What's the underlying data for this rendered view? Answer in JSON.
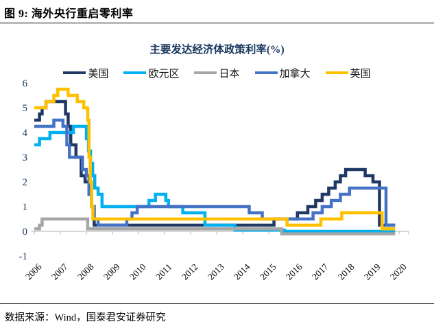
{
  "header": {
    "title": "图 9:  海外央行重启零利率"
  },
  "footer": {
    "source": "数据来源：Wind，国泰君安证券研究"
  },
  "chart_data": {
    "type": "line",
    "title": "主要发达经济体政策利率(%)",
    "title_color": "#17375e",
    "legend_position": "top",
    "grid": false,
    "xlim": [
      2006,
      2020.4
    ],
    "ylim": [
      -1,
      6
    ],
    "x_tick_labels": [
      "2006",
      "2007",
      "2008",
      "2009",
      "2010",
      "2011",
      "2012",
      "2013",
      "2014",
      "2015",
      "2016",
      "2017",
      "2018",
      "2019",
      "2020"
    ],
    "y_ticks": [
      6,
      5,
      4,
      3,
      2,
      1,
      0,
      -1
    ],
    "axis_color": "#bfbfbf",
    "x_tick_label_color": "#000000",
    "y_tick_label_color": "#17375e",
    "series": [
      {
        "name": "美国",
        "color": "#1f3864",
        "points": [
          [
            2006.0,
            4.5
          ],
          [
            2006.2,
            4.75
          ],
          [
            2006.3,
            5.0
          ],
          [
            2006.45,
            5.25
          ],
          [
            2007.2,
            4.75
          ],
          [
            2007.3,
            4.25
          ],
          [
            2007.4,
            3.5
          ],
          [
            2007.6,
            3.0
          ],
          [
            2007.8,
            2.25
          ],
          [
            2007.95,
            2.0
          ],
          [
            2008.1,
            1.5
          ],
          [
            2008.2,
            1.0
          ],
          [
            2008.3,
            0.25
          ],
          [
            2015.2,
            0.5
          ],
          [
            2016.1,
            0.75
          ],
          [
            2016.5,
            1.0
          ],
          [
            2016.8,
            1.25
          ],
          [
            2017.05,
            1.5
          ],
          [
            2017.3,
            1.75
          ],
          [
            2017.55,
            2.0
          ],
          [
            2017.75,
            2.25
          ],
          [
            2017.95,
            2.5
          ],
          [
            2018.7,
            2.25
          ],
          [
            2019.0,
            2.0
          ],
          [
            2019.25,
            0.25
          ],
          [
            2019.85,
            0.25
          ]
        ]
      },
      {
        "name": "欧元区",
        "color": "#00b0f0",
        "points": [
          [
            2006.0,
            3.5
          ],
          [
            2006.2,
            3.75
          ],
          [
            2006.6,
            4.0
          ],
          [
            2007.5,
            4.25
          ],
          [
            2008.0,
            3.75
          ],
          [
            2008.08,
            3.25
          ],
          [
            2008.16,
            2.75
          ],
          [
            2008.24,
            2.25
          ],
          [
            2008.32,
            1.75
          ],
          [
            2008.45,
            1.5
          ],
          [
            2008.6,
            1.0
          ],
          [
            2010.4,
            1.25
          ],
          [
            2010.65,
            1.5
          ],
          [
            2011.05,
            1.25
          ],
          [
            2011.15,
            1.0
          ],
          [
            2011.7,
            0.75
          ],
          [
            2012.55,
            0.25
          ],
          [
            2013.7,
            0.05
          ],
          [
            2015.6,
            0.0
          ],
          [
            2019.85,
            0.0
          ]
        ]
      },
      {
        "name": "日本",
        "color": "#a6a6a6",
        "points": [
          [
            2006.0,
            0.1
          ],
          [
            2006.2,
            0.25
          ],
          [
            2006.3,
            0.5
          ],
          [
            2008.05,
            0.1
          ],
          [
            2015.5,
            -0.1
          ],
          [
            2019.85,
            -0.1
          ]
        ]
      },
      {
        "name": "加拿大",
        "color": "#4472c4",
        "points": [
          [
            2006.0,
            4.25
          ],
          [
            2006.75,
            4.5
          ],
          [
            2007.1,
            4.25
          ],
          [
            2007.25,
            3.5
          ],
          [
            2007.35,
            3.0
          ],
          [
            2007.85,
            2.5
          ],
          [
            2008.0,
            2.25
          ],
          [
            2008.1,
            1.5
          ],
          [
            2008.2,
            1.0
          ],
          [
            2008.3,
            0.5
          ],
          [
            2008.45,
            0.25
          ],
          [
            2009.55,
            0.5
          ],
          [
            2009.75,
            0.75
          ],
          [
            2009.95,
            1.0
          ],
          [
            2014.25,
            0.75
          ],
          [
            2014.75,
            0.5
          ],
          [
            2016.7,
            0.75
          ],
          [
            2017.05,
            1.0
          ],
          [
            2017.4,
            1.25
          ],
          [
            2017.75,
            1.5
          ],
          [
            2018.1,
            1.75
          ],
          [
            2019.5,
            0.25
          ],
          [
            2019.85,
            0.25
          ]
        ]
      },
      {
        "name": "英国",
        "color": "#ffc000",
        "points": [
          [
            2006.0,
            5.0
          ],
          [
            2006.45,
            5.25
          ],
          [
            2006.75,
            5.5
          ],
          [
            2006.9,
            5.75
          ],
          [
            2007.3,
            5.5
          ],
          [
            2007.65,
            5.25
          ],
          [
            2007.9,
            5.0
          ],
          [
            2008.05,
            4.5
          ],
          [
            2008.1,
            3.0
          ],
          [
            2008.15,
            2.0
          ],
          [
            2008.2,
            1.0
          ],
          [
            2008.25,
            0.5
          ],
          [
            2015.7,
            0.25
          ],
          [
            2017.0,
            0.5
          ],
          [
            2017.8,
            0.75
          ],
          [
            2019.35,
            0.1
          ],
          [
            2019.85,
            0.1
          ]
        ]
      }
    ]
  }
}
